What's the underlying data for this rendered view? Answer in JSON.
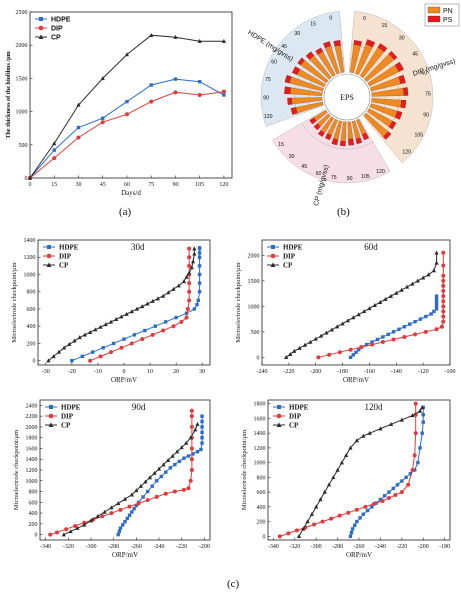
{
  "panel_labels": {
    "a": "(a)",
    "b": "(b)",
    "c": "(c)"
  },
  "colors": {
    "HDPE": "#2a6ccc",
    "DIP": "#e23a3a",
    "CP": "#2b2b2b",
    "PN": "#ef8a22",
    "PS": "#e61c1c",
    "ring_hdpe": "#dbe8f2",
    "ring_dip": "#f6e2d0",
    "ring_cp": "#f7dde6"
  },
  "chart_data": [
    {
      "type": "line",
      "panel": "a",
      "xlabel": "Days/d",
      "ylabel": "The thickness of the biofilms /μm",
      "xlim": [
        0,
        125
      ],
      "ylim": [
        0,
        2500
      ],
      "xticks": [
        0,
        15,
        30,
        45,
        60,
        75,
        90,
        105,
        120
      ],
      "yticks": [
        0,
        500,
        1000,
        1500,
        2000,
        2500
      ],
      "x": [
        0,
        15,
        30,
        45,
        60,
        75,
        90,
        105,
        120
      ],
      "series": [
        {
          "name": "HDPE",
          "marker": "square",
          "values": [
            0,
            420,
            760,
            900,
            1150,
            1400,
            1490,
            1450,
            1250
          ]
        },
        {
          "name": "DIP",
          "marker": "circle",
          "values": [
            0,
            300,
            610,
            840,
            960,
            1150,
            1290,
            1250,
            1300
          ]
        },
        {
          "name": "CP",
          "marker": "triangle",
          "values": [
            0,
            520,
            1100,
            1500,
            1860,
            2150,
            2120,
            2060,
            2060
          ]
        }
      ],
      "legend": "top-left"
    },
    {
      "type": "bar",
      "subtype": "polar-stacked",
      "panel": "b",
      "center_label": "EPS",
      "legend": {
        "items": [
          "PN",
          "PS"
        ],
        "position": "top-right"
      },
      "sectors": [
        {
          "name": "HDPE (mg/gvss)",
          "ticks": [
            "120",
            "90",
            "75",
            "60",
            "45",
            "30",
            "15",
            "0"
          ],
          "PN": [
            70,
            78,
            82,
            88,
            76,
            80,
            72,
            68,
            74,
            70
          ],
          "PS": [
            12,
            10,
            14,
            11,
            13,
            9,
            12,
            10,
            11,
            12
          ]
        },
        {
          "name": "DIP (mg/gvss)",
          "ticks": [
            "0",
            "15",
            "30",
            "45",
            "60",
            "75",
            "90",
            "105",
            "120"
          ],
          "PN": [
            72,
            80,
            86,
            90,
            84,
            78,
            82,
            76,
            70,
            68,
            74
          ],
          "PS": [
            10,
            12,
            11,
            9,
            13,
            12,
            10,
            11,
            12,
            10,
            9
          ]
        },
        {
          "name": "CP (mg/gvss)",
          "ticks": [
            "120",
            "105",
            "90",
            "75",
            "60",
            "45",
            "30",
            "15"
          ],
          "PN": [
            40,
            46,
            44,
            50,
            48,
            42,
            45,
            38,
            36
          ],
          "PS": [
            14,
            12,
            15,
            11,
            13,
            12,
            10,
            11,
            12
          ]
        }
      ]
    },
    {
      "type": "line",
      "panel": "c",
      "annotation": "30d",
      "xlabel": "ORP/mV",
      "ylabel": "Microelectrode checkpoint/μm",
      "xlim": [
        -33,
        33
      ],
      "ylim": [
        -50,
        1400
      ],
      "xticks": [
        -30,
        -20,
        -10,
        0,
        10,
        20,
        30
      ],
      "yticks": [
        0,
        200,
        400,
        600,
        800,
        1000,
        1200,
        1400
      ],
      "series": [
        {
          "name": "HDPE",
          "marker": "square",
          "x": [
            -20,
            -16,
            -12,
            -8,
            -4,
            0,
            4,
            8,
            12,
            16,
            20,
            24,
            27,
            28,
            28.5,
            29,
            29,
            29,
            29,
            29,
            29,
            29,
            29
          ],
          "y": [
            0,
            50,
            100,
            150,
            200,
            250,
            300,
            350,
            400,
            450,
            500,
            550,
            600,
            650,
            700,
            800,
            900,
            1000,
            1100,
            1200,
            1250,
            1300,
            1310
          ]
        },
        {
          "name": "DIP",
          "marker": "circle",
          "x": [
            -13,
            -9,
            -5,
            -1,
            3,
            7,
            11,
            15,
            19,
            22,
            24,
            24.5,
            25,
            25,
            25,
            25,
            25,
            25,
            25
          ],
          "y": [
            0,
            50,
            100,
            150,
            200,
            250,
            300,
            350,
            400,
            450,
            500,
            600,
            700,
            800,
            900,
            1000,
            1100,
            1200,
            1300
          ]
        },
        {
          "name": "CP",
          "marker": "triangle",
          "x": [
            -29,
            -27,
            -25,
            -23,
            -21,
            -19,
            -17,
            -15,
            -13,
            -11,
            -9,
            -7,
            -5,
            -3,
            -1,
            1,
            3,
            5,
            7,
            9,
            11,
            13,
            15,
            17,
            19,
            21,
            23,
            24,
            25,
            26,
            26.5,
            27,
            27
          ],
          "y": [
            0,
            50,
            100,
            150,
            190,
            230,
            270,
            300,
            330,
            360,
            390,
            420,
            450,
            480,
            510,
            540,
            570,
            600,
            630,
            660,
            690,
            720,
            750,
            790,
            830,
            870,
            920,
            970,
            1020,
            1080,
            1150,
            1240,
            1300
          ]
        }
      ],
      "legend": "top-left"
    },
    {
      "type": "line",
      "panel": "c",
      "annotation": "60d",
      "xlabel": "ORP/mV",
      "ylabel": "Microelectrode checkpoint/μm",
      "xlim": [
        -240,
        -100
      ],
      "ylim": [
        -150,
        2300
      ],
      "xticks": [
        -240,
        -220,
        -200,
        -180,
        -160,
        -140,
        -120,
        -100
      ],
      "yticks": [
        0,
        500,
        1000,
        1500,
        2000
      ],
      "series": [
        {
          "name": "HDPE",
          "marker": "square",
          "x": [
            -174,
            -172,
            -170,
            -168,
            -166,
            -162,
            -158,
            -154,
            -150,
            -146,
            -142,
            -138,
            -134,
            -130,
            -126,
            -122,
            -118,
            -114,
            -112,
            -110,
            -110,
            -110,
            -110,
            -110,
            -110
          ],
          "y": [
            0,
            50,
            100,
            150,
            200,
            250,
            300,
            350,
            400,
            450,
            500,
            550,
            600,
            650,
            700,
            750,
            800,
            850,
            900,
            950,
            1000,
            1050,
            1100,
            1150,
            1200
          ]
        },
        {
          "name": "DIP",
          "marker": "circle",
          "x": [
            -198,
            -190,
            -182,
            -174,
            -166,
            -158,
            -150,
            -142,
            -134,
            -126,
            -118,
            -110,
            -106,
            -105,
            -105,
            -105,
            -105,
            -105,
            -105,
            -105,
            -105,
            -105,
            -105,
            -105,
            -105
          ],
          "y": [
            0,
            50,
            100,
            150,
            200,
            250,
            300,
            350,
            400,
            450,
            500,
            550,
            600,
            700,
            800,
            900,
            1000,
            1100,
            1200,
            1300,
            1400,
            1500,
            1600,
            1800,
            2050
          ]
        },
        {
          "name": "CP",
          "marker": "triangle",
          "x": [
            -222,
            -219,
            -216,
            -212,
            -208,
            -204,
            -200,
            -196,
            -192,
            -188,
            -184,
            -180,
            -176,
            -172,
            -168,
            -164,
            -160,
            -156,
            -152,
            -148,
            -144,
            -140,
            -136,
            -132,
            -128,
            -124,
            -120,
            -116,
            -112,
            -110,
            -110
          ],
          "y": [
            0,
            60,
            120,
            180,
            240,
            300,
            360,
            420,
            480,
            540,
            600,
            660,
            720,
            780,
            840,
            900,
            960,
            1020,
            1080,
            1140,
            1200,
            1260,
            1320,
            1380,
            1440,
            1500,
            1560,
            1620,
            1700,
            1850,
            2050
          ]
        }
      ],
      "legend": "top-left"
    },
    {
      "type": "line",
      "panel": "c",
      "annotation": "90d",
      "xlabel": "ORP/mV",
      "ylabel": "Microelectrode checkpoint/μm",
      "xlim": [
        -345,
        -195
      ],
      "ylim": [
        -100,
        2500
      ],
      "xticks": [
        -340,
        -320,
        -300,
        -280,
        -260,
        -240,
        -220,
        -200
      ],
      "yticks": [
        0,
        200,
        400,
        600,
        800,
        1000,
        1200,
        1400,
        1600,
        1800,
        2000,
        2200,
        2400
      ],
      "series": [
        {
          "name": "HDPE",
          "marker": "square",
          "x": [
            -276,
            -275,
            -274,
            -272,
            -270,
            -268,
            -266,
            -264,
            -262,
            -260,
            -258,
            -254,
            -250,
            -246,
            -242,
            -238,
            -234,
            -230,
            -226,
            -222,
            -218,
            -214,
            -210,
            -206,
            -203,
            -202,
            -202,
            -202,
            -202,
            -202,
            -202
          ],
          "y": [
            0,
            60,
            120,
            180,
            240,
            300,
            360,
            420,
            480,
            540,
            600,
            700,
            800,
            900,
            1000,
            1080,
            1160,
            1240,
            1300,
            1360,
            1420,
            1460,
            1500,
            1540,
            1580,
            1700,
            1800,
            1900,
            2000,
            2100,
            2200
          ]
        },
        {
          "name": "DIP",
          "marker": "circle",
          "x": [
            -336,
            -330,
            -322,
            -314,
            -306,
            -298,
            -290,
            -282,
            -274,
            -266,
            -258,
            -250,
            -242,
            -234,
            -226,
            -218,
            -214,
            -212,
            -211,
            -211,
            -211,
            -211,
            -211,
            -211,
            -211
          ],
          "y": [
            0,
            40,
            100,
            160,
            220,
            280,
            340,
            400,
            460,
            520,
            580,
            640,
            700,
            760,
            800,
            830,
            860,
            1000,
            1200,
            1400,
            1600,
            1800,
            2000,
            2200,
            2300
          ]
        },
        {
          "name": "CP",
          "marker": "triangle",
          "x": [
            -324,
            -318,
            -312,
            -306,
            -300,
            -294,
            -288,
            -282,
            -276,
            -270,
            -264,
            -260,
            -256,
            -252,
            -248,
            -244,
            -240,
            -236,
            -232,
            -228,
            -224,
            -220,
            -216,
            -212,
            -208,
            -206
          ],
          "y": [
            0,
            60,
            120,
            180,
            260,
            340,
            420,
            500,
            580,
            660,
            740,
            820,
            900,
            980,
            1060,
            1140,
            1220,
            1300,
            1380,
            1460,
            1540,
            1620,
            1700,
            1800,
            1950,
            2050
          ]
        }
      ],
      "legend": "top-left"
    },
    {
      "type": "line",
      "panel": "c",
      "annotation": "120d",
      "xlabel": "ORP/mV",
      "ylabel": "Microelectrode checkpoint/μm",
      "xlim": [
        -345,
        -175
      ],
      "ylim": [
        -50,
        1850
      ],
      "xticks": [
        -340,
        -320,
        -300,
        -280,
        -260,
        -240,
        -220,
        -200,
        -180
      ],
      "yticks": [
        0,
        200,
        400,
        600,
        800,
        1000,
        1200,
        1400,
        1600,
        1800
      ],
      "series": [
        {
          "name": "HDPE",
          "marker": "square",
          "x": [
            -268,
            -267,
            -266,
            -264,
            -262,
            -259,
            -256,
            -252,
            -248,
            -244,
            -240,
            -236,
            -232,
            -228,
            -224,
            -220,
            -216,
            -212,
            -208,
            -205,
            -203,
            -201,
            -200,
            -200,
            -200
          ],
          "y": [
            0,
            50,
            100,
            150,
            200,
            250,
            300,
            350,
            400,
            450,
            500,
            550,
            600,
            650,
            700,
            750,
            800,
            850,
            900,
            1000,
            1200,
            1400,
            1550,
            1650,
            1750
          ]
        },
        {
          "name": "DIP",
          "marker": "circle",
          "x": [
            -334,
            -326,
            -318,
            -310,
            -302,
            -294,
            -286,
            -278,
            -270,
            -262,
            -254,
            -246,
            -238,
            -232,
            -226,
            -220,
            -214,
            -210,
            -208,
            -207,
            -207,
            -207
          ],
          "y": [
            0,
            40,
            80,
            120,
            160,
            200,
            240,
            280,
            320,
            360,
            400,
            440,
            480,
            520,
            560,
            600,
            700,
            900,
            1100,
            1400,
            1650,
            1800
          ]
        },
        {
          "name": "CP",
          "marker": "triangle",
          "x": [
            -316,
            -312,
            -308,
            -304,
            -300,
            -296,
            -292,
            -288,
            -284,
            -280,
            -276,
            -272,
            -268,
            -262,
            -256,
            -250,
            -240,
            -230,
            -220,
            -210,
            -203,
            -201
          ],
          "y": [
            0,
            100,
            200,
            300,
            400,
            500,
            600,
            700,
            800,
            900,
            1000,
            1100,
            1200,
            1300,
            1360,
            1400,
            1460,
            1520,
            1580,
            1640,
            1700,
            1750
          ]
        }
      ],
      "legend": "top-left"
    }
  ]
}
